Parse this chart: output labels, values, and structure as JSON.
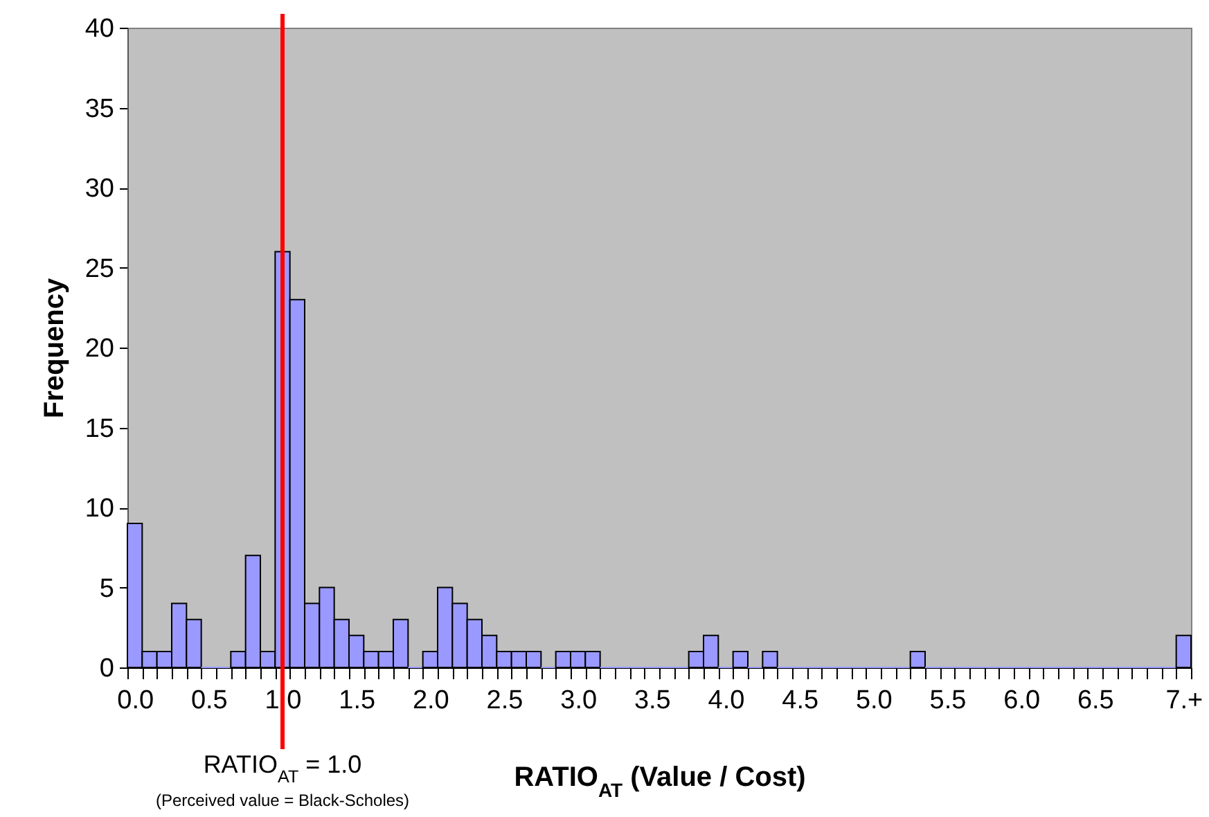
{
  "chart_data": {
    "type": "bar",
    "xlabel": "RATIO$_{AT}$ (Value / Cost)",
    "ylabel": "Frequency",
    "categories": [
      "0.0",
      null,
      null,
      null,
      null,
      "0.5",
      null,
      null,
      null,
      null,
      "1.0",
      null,
      null,
      null,
      null,
      "1.5",
      null,
      null,
      null,
      null,
      "2.0",
      null,
      null,
      null,
      null,
      "2.5",
      null,
      null,
      null,
      null,
      "3.0",
      null,
      null,
      null,
      null,
      "3.5",
      null,
      null,
      null,
      null,
      "4.0",
      null,
      null,
      null,
      null,
      "4.5",
      null,
      null,
      null,
      null,
      "5.0",
      null,
      null,
      null,
      null,
      "5.5",
      null,
      null,
      null,
      null,
      "6.0",
      null,
      null,
      null,
      null,
      "6.5",
      null,
      null,
      null,
      null,
      null,
      "7.+"
    ],
    "values": [
      9,
      1,
      1,
      4,
      3,
      0,
      0,
      1,
      7,
      1,
      26,
      23,
      4,
      5,
      3,
      2,
      1,
      1,
      3,
      0,
      1,
      5,
      4,
      3,
      2,
      1,
      1,
      1,
      0,
      1,
      1,
      1,
      0,
      0,
      0,
      0,
      0,
      0,
      1,
      2,
      0,
      1,
      0,
      1,
      0,
      0,
      0,
      0,
      0,
      0,
      0,
      0,
      0,
      1,
      0,
      0,
      0,
      0,
      0,
      0,
      0,
      0,
      0,
      0,
      0,
      0,
      0,
      0,
      0,
      0,
      0,
      2
    ],
    "color": "#9999ff",
    "ylim": [
      0,
      40
    ],
    "yticks": [
      0,
      5,
      10,
      15,
      20,
      25,
      30,
      35,
      40
    ],
    "grid": false,
    "ref_lines": [
      {
        "axis": "x",
        "value": "1.0",
        "label": "RATIO$_{AT}$ = 1.0",
        "color": "#ff0000"
      }
    ],
    "annotations": [
      "(Perceived value = Black-Scholes)"
    ]
  }
}
